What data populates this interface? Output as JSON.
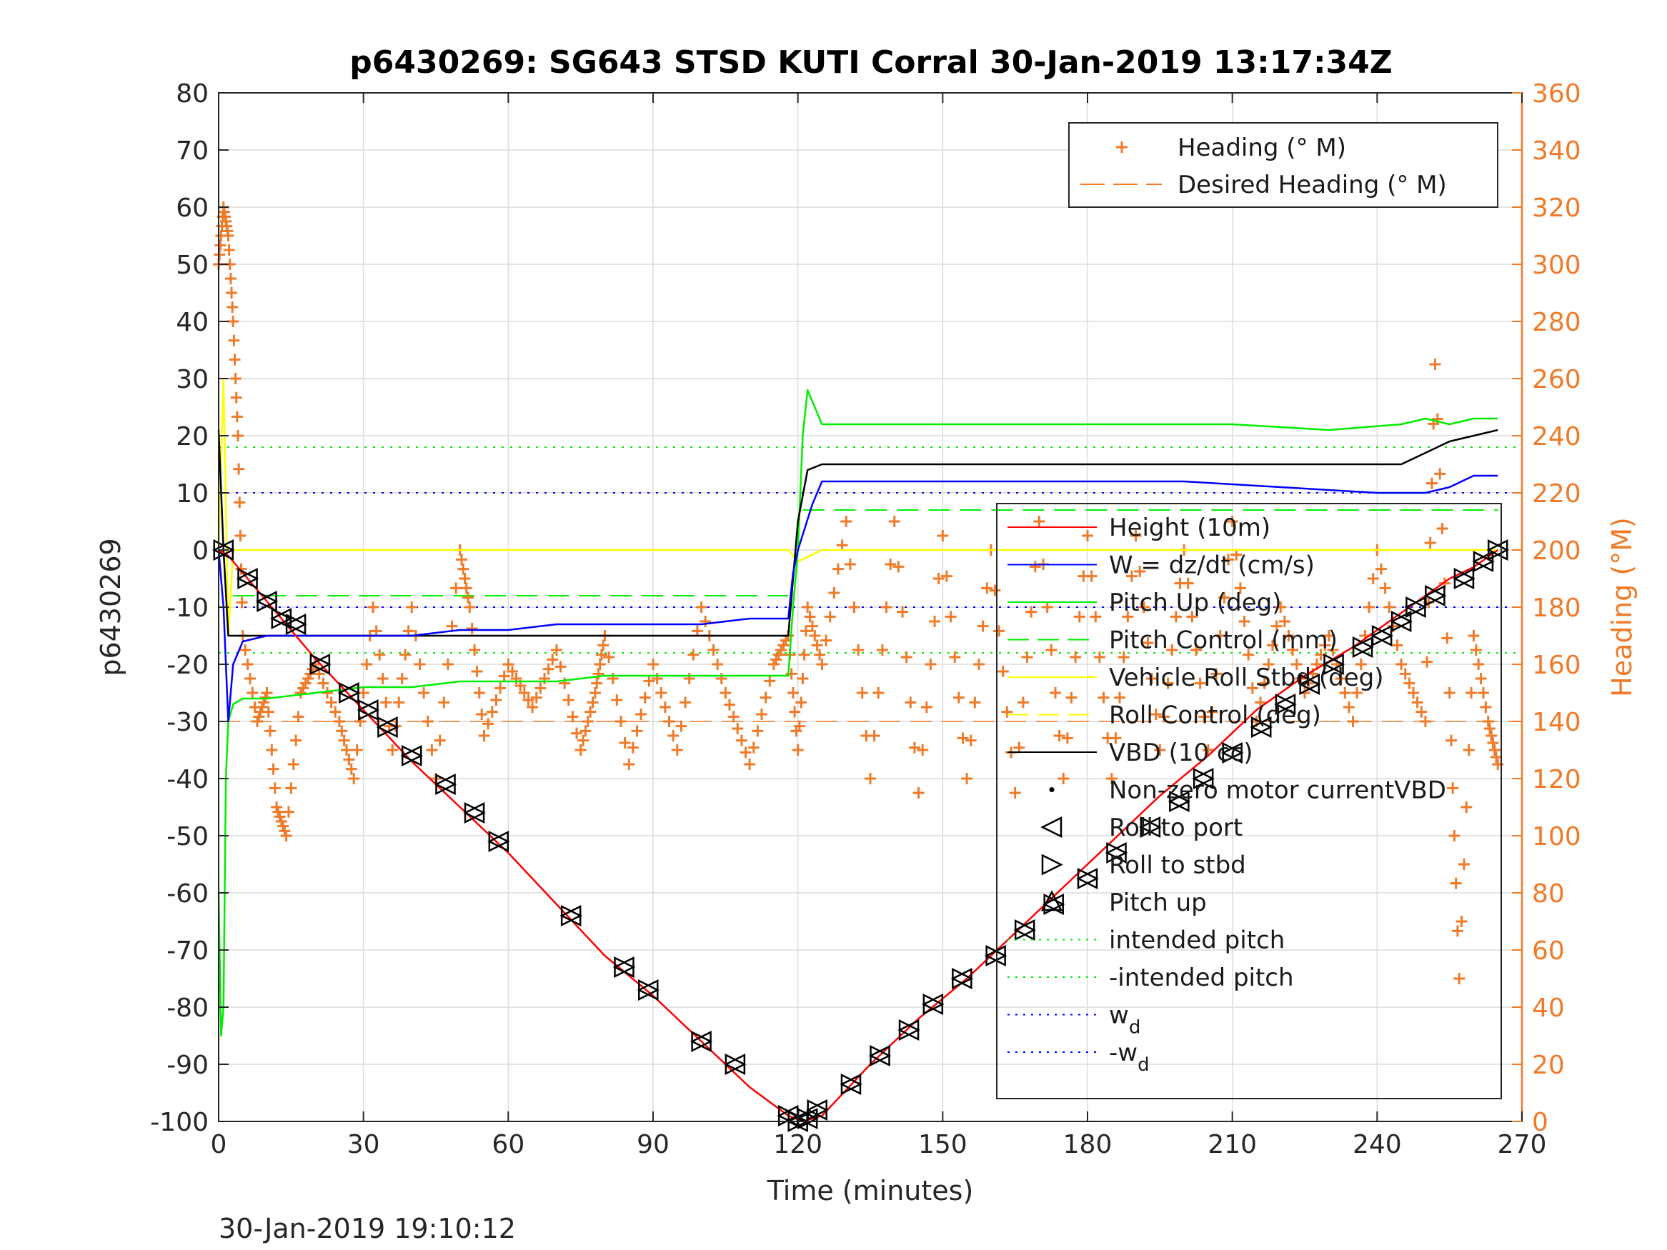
{
  "chart_data": {
    "type": "line",
    "title": "p6430269: SG643 STSD KUTI Corral 30-Jan-2019 13:17:34Z",
    "xlabel": "Time (minutes)",
    "ylabel_left": "p6430269",
    "ylabel_right": "Heading (°M)",
    "footer": "30-Jan-2019 19:10:12",
    "xlim": [
      0,
      270
    ],
    "ylim_left": [
      -100,
      80
    ],
    "ylim_right": [
      0,
      360
    ],
    "xticks": [
      "0",
      "30",
      "60",
      "90",
      "120",
      "150",
      "180",
      "210",
      "240",
      "270"
    ],
    "yticks_left": [
      "80",
      "70",
      "60",
      "50",
      "40",
      "30",
      "20",
      "10",
      "0",
      "-10",
      "-20",
      "-30",
      "-40",
      "-50",
      "-60",
      "-70",
      "-80",
      "-90",
      "-100"
    ],
    "yticks_right": [
      "360",
      "340",
      "320",
      "300",
      "280",
      "260",
      "240",
      "220",
      "200",
      "180",
      "160",
      "140",
      "120",
      "100",
      "80",
      "60",
      "40",
      "20",
      "0"
    ],
    "grid": true,
    "colors": {
      "height": "#ff0000",
      "w": "#0000ff",
      "pitch": "#00ee00",
      "roll": "#ffff00",
      "vbd": "#000000",
      "heading": "#f07a28",
      "axis_right": "#f07a28"
    },
    "legend_heading": [
      {
        "label": "Heading (° M)",
        "marker": "plus",
        "color": "#f07a28"
      },
      {
        "label": "Desired Heading (° M)",
        "marker": "dash",
        "color": "#f07a28"
      }
    ],
    "legend_main": [
      {
        "label": "Height (10m)",
        "style": "line",
        "color": "#ff0000"
      },
      {
        "label": "W = dz/dt (cm/s)",
        "style": "line",
        "color": "#0000ff"
      },
      {
        "label": "Pitch Up (deg)",
        "style": "line",
        "color": "#00ee00"
      },
      {
        "label": "Pitch Control (mm)",
        "style": "dashed",
        "color": "#00ee00"
      },
      {
        "label": "Vehicle Roll Stbd (deg)",
        "style": "line",
        "color": "#ffff00"
      },
      {
        "label": "Roll Control (deg)",
        "style": "dashed",
        "color": "#ffff00"
      },
      {
        "label": "VBD (10 cc)",
        "style": "line",
        "color": "#000000"
      },
      {
        "label": "Non-zero motor currentVBD",
        "style": "dot",
        "color": "#000000"
      },
      {
        "label": "Roll to port",
        "style": "tri-left",
        "color": "#000000"
      },
      {
        "label": "Roll to stbd",
        "style": "tri-right",
        "color": "#000000"
      },
      {
        "label": "Pitch up",
        "style": "tri-up",
        "color": "#000000"
      },
      {
        "label": "intended pitch",
        "style": "dotted",
        "color": "#00ee00"
      },
      {
        "label": "-intended pitch",
        "style": "dotted",
        "color": "#00ee00"
      },
      {
        "label": "w",
        "sub": "d",
        "style": "dotted",
        "color": "#0000ff"
      },
      {
        "label": "-w",
        "sub": "d",
        "style": "dotted",
        "color": "#0000ff"
      }
    ],
    "series": [
      {
        "name": "Height (10m)",
        "x": [
          0,
          2,
          10,
          20,
          30,
          40,
          50,
          60,
          70,
          80,
          90,
          100,
          110,
          118,
          121,
          125,
          135,
          145,
          155,
          165,
          175,
          185,
          195,
          205,
          215,
          225,
          235,
          245,
          255,
          260,
          265
        ],
        "y": [
          0,
          -1,
          -9,
          -19,
          -28,
          -37,
          -45,
          -53,
          -62,
          -71,
          -78,
          -86,
          -94,
          -99,
          -100,
          -99,
          -90,
          -82,
          -75,
          -67,
          -59,
          -51,
          -43,
          -36,
          -28,
          -22,
          -17,
          -11,
          -5,
          -3,
          0
        ]
      },
      {
        "name": "W = dz/dt (cm/s)",
        "x": [
          0,
          1,
          2,
          3,
          5,
          10,
          20,
          30,
          40,
          50,
          60,
          70,
          80,
          90,
          100,
          110,
          118,
          119,
          120,
          123,
          125,
          130,
          140,
          160,
          180,
          200,
          220,
          240,
          250,
          255,
          260,
          265
        ],
        "y": [
          0,
          -10,
          -30,
          -20,
          -16,
          -15,
          -15,
          -15,
          -15,
          -14,
          -14,
          -13,
          -13,
          -13,
          -13,
          -12,
          -12,
          -4,
          0,
          8,
          12,
          12,
          12,
          12,
          12,
          12,
          11,
          10,
          10,
          11,
          13,
          13
        ]
      },
      {
        "name": "Pitch Up (deg)",
        "x": [
          0,
          0.5,
          1,
          1.5,
          2,
          3,
          5,
          10,
          20,
          30,
          40,
          50,
          60,
          70,
          80,
          90,
          100,
          110,
          118,
          119,
          120,
          121,
          122,
          125,
          130,
          150,
          170,
          190,
          210,
          230,
          245,
          250,
          255,
          260,
          265
        ],
        "y": [
          -60,
          -85,
          -80,
          -40,
          -30,
          -27,
          -26,
          -26,
          -25,
          -24,
          -24,
          -23,
          -23,
          -23,
          -22,
          -22,
          -22,
          -22,
          -22,
          -10,
          0,
          20,
          28,
          22,
          22,
          22,
          22,
          22,
          22,
          21,
          22,
          23,
          22,
          23,
          23
        ]
      },
      {
        "name": "Vehicle Roll Stbd (deg)",
        "x": [
          0,
          1,
          2,
          3,
          5,
          10,
          30,
          60,
          90,
          118,
          120,
          125,
          150,
          180,
          210,
          240,
          265
        ],
        "y": [
          0,
          30,
          -15,
          0,
          0,
          0,
          0,
          0,
          0,
          0,
          -2,
          0,
          0,
          0,
          0,
          0,
          0
        ]
      },
      {
        "name": "VBD (10 cc)",
        "x": [
          0,
          1,
          2,
          3,
          118,
          119,
          120,
          122,
          125,
          245,
          250,
          255,
          260,
          265
        ],
        "y": [
          21,
          0,
          -15,
          -15,
          -15,
          -5,
          5,
          14,
          15,
          15,
          17,
          19,
          20,
          21
        ]
      },
      {
        "name": "Heading (° M)",
        "x": [
          0,
          1,
          2,
          3,
          4,
          5,
          8,
          10,
          12,
          14,
          17,
          20,
          25,
          28,
          32,
          36,
          40,
          45,
          50,
          52,
          55,
          60,
          65,
          70,
          75,
          78,
          80,
          85,
          90,
          95,
          100,
          105,
          110,
          115,
          118,
          120,
          122,
          125,
          130,
          135,
          140,
          145,
          150,
          155,
          160,
          165,
          170,
          175,
          180,
          185,
          190,
          195,
          200,
          205,
          210,
          215,
          220,
          225,
          230,
          235,
          240,
          245,
          250,
          252,
          255,
          257,
          260,
          263,
          265
        ],
        "y": [
          300,
          320,
          310,
          280,
          240,
          170,
          140,
          150,
          110,
          100,
          150,
          160,
          140,
          120,
          180,
          130,
          180,
          120,
          200,
          180,
          135,
          160,
          145,
          165,
          130,
          150,
          170,
          125,
          160,
          130,
          180,
          150,
          125,
          160,
          170,
          130,
          180,
          160,
          210,
          120,
          210,
          115,
          205,
          120,
          200,
          115,
          210,
          120,
          205,
          120,
          205,
          130,
          200,
          130,
          210,
          140,
          180,
          150,
          170,
          140,
          200,
          160,
          140,
          265,
          150,
          50,
          170,
          140,
          125
        ]
      }
    ],
    "markers": {
      "times": [
        1,
        6,
        10,
        13,
        16,
        21,
        27,
        31,
        35,
        40,
        47,
        53,
        58,
        73,
        84,
        89,
        100,
        107,
        118,
        120,
        122,
        124,
        131,
        137,
        143,
        148,
        154,
        161,
        167,
        173,
        180,
        186,
        193,
        199,
        204,
        210,
        216,
        221,
        226,
        231,
        237,
        241,
        245,
        248,
        252,
        258,
        262,
        265
      ],
      "heights": [
        0,
        -5,
        -9,
        -12,
        -13,
        -20,
        -25,
        -28,
        -31,
        -36,
        -41,
        -46,
        -51,
        -64,
        -73,
        -77,
        -86,
        -90,
        -99,
        -100,
        -99.5,
        -98,
        -93.5,
        -88.5,
        -84,
        -79.5,
        -75,
        -71,
        -66.5,
        -62,
        -57.5,
        -53,
        -48.5,
        -44,
        -40,
        -35.5,
        -31,
        -27,
        -23.5,
        -20,
        -17,
        -15,
        -12.5,
        -10,
        -8,
        -5,
        -2,
        0
      ]
    },
    "reference_lines": [
      {
        "name": "intended pitch",
        "y": 18,
        "color": "#00ee00"
      },
      {
        "name": "-intended pitch",
        "y": -18,
        "color": "#00ee00"
      },
      {
        "name": "w_d",
        "y": 10,
        "color": "#0000ff"
      },
      {
        "name": "-w_d",
        "y": -10,
        "color": "#0000ff"
      },
      {
        "name": "Pitch Control (mm) dive",
        "y": -8,
        "color": "#00ee00"
      },
      {
        "name": "Pitch Control (mm) climb",
        "y": 7,
        "color": "#00ee00"
      },
      {
        "name": "Desired Heading (° M)",
        "y_right": 140,
        "color": "#f07a28"
      }
    ]
  }
}
